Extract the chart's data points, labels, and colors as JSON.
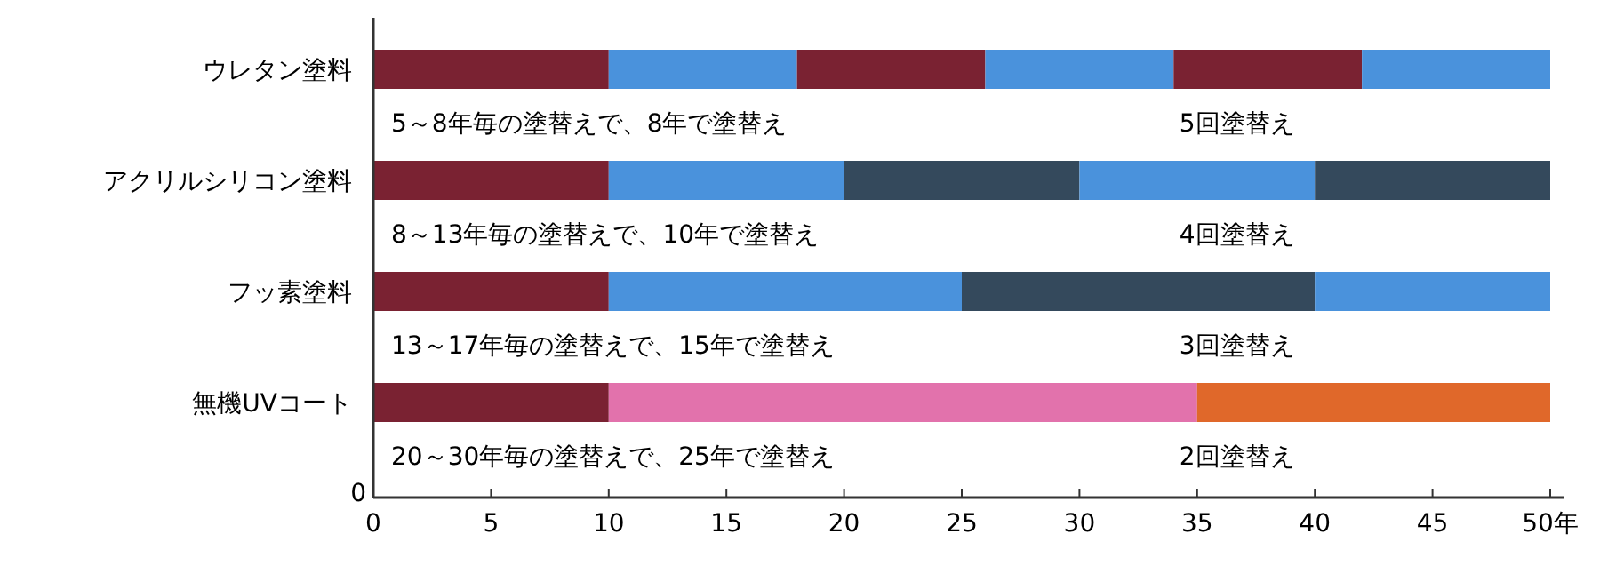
{
  "chart_data": {
    "type": "bar",
    "orientation": "horizontal",
    "stacked": true,
    "categories": [
      "ウレタン塗料",
      "アクリルシリコン塗料",
      "フッ素塗料",
      "無機UVコート"
    ],
    "series": [
      {
        "colors": [
          "#7a2232",
          "#7a2232",
          "#7a2232",
          "#7a2232"
        ],
        "values": [
          10,
          10,
          10,
          10
        ]
      },
      {
        "colors": [
          "#4a92dc",
          "#4a92dc",
          "#4a92dc",
          "#e272ac"
        ],
        "values": [
          8,
          10,
          15,
          25
        ]
      },
      {
        "colors": [
          "#7a2232",
          "#34495c",
          "#34495c",
          "#e0682a"
        ],
        "values": [
          8,
          10,
          15,
          15
        ]
      },
      {
        "colors": [
          "#4a92dc",
          "#4a92dc",
          "#4a92dc",
          null
        ],
        "values": [
          8,
          10,
          10,
          null
        ]
      },
      {
        "colors": [
          "#7a2232",
          "#34495c",
          null,
          null
        ],
        "values": [
          8,
          10,
          null,
          null
        ]
      },
      {
        "colors": [
          "#4a92dc",
          null,
          null,
          null
        ],
        "values": [
          8,
          null,
          null,
          null
        ]
      }
    ],
    "xlim": [
      0,
      50
    ],
    "xticks": [
      0,
      5,
      10,
      15,
      20,
      25,
      30,
      35,
      40,
      45,
      {
        "value": 50,
        "label": "50年"
      }
    ],
    "annotations": [
      "5～8年毎の塗替えで、8年で塗替え",
      "5回塗替え",
      "8～13年毎の塗替えで、10年で塗替え",
      "4回塗替え",
      "13～17年毎の塗替えで、15年で塗替え",
      "3回塗替え",
      "20～30年毎の塗替えで、25年で塗替え",
      "2回塗替え",
      "0"
    ]
  }
}
